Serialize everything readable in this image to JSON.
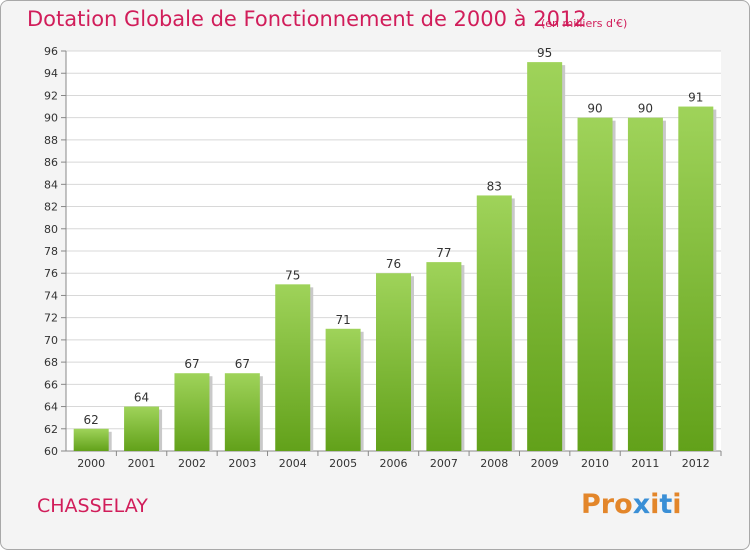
{
  "header": {
    "title": "Dotation Globale de Fonctionnement de 2000 à 2012",
    "subtitle": "(en milliers d'€)"
  },
  "footer": {
    "commune": "CHASSELAY",
    "logo": "Proxiti"
  },
  "colors": {
    "title": "#d11d5a",
    "bar_top": "#9fd35a",
    "bar_bottom": "#62a11a",
    "grid": "#d8d8d8",
    "logo_letters": [
      "#e3862a",
      "#e3862a",
      "#e3862a",
      "#3a8fd6",
      "#e3862a",
      "#3a8fd6",
      "#e3862a"
    ]
  },
  "chart_data": {
    "type": "bar",
    "title": "Dotation Globale de Fonctionnement de 2000 à 2012",
    "subtitle": "(en milliers d'€)",
    "categories": [
      "2000",
      "2001",
      "2002",
      "2003",
      "2004",
      "2005",
      "2006",
      "2007",
      "2008",
      "2009",
      "2010",
      "2011",
      "2012"
    ],
    "values": [
      62,
      64,
      67,
      67,
      75,
      71,
      76,
      77,
      83,
      95,
      90,
      90,
      91
    ],
    "ylim": [
      60,
      96
    ],
    "yticks": [
      60,
      62,
      64,
      66,
      68,
      70,
      72,
      74,
      76,
      78,
      80,
      82,
      84,
      86,
      88,
      90,
      92,
      94,
      96
    ],
    "xlabel": "",
    "ylabel": "",
    "grid": true,
    "data_labels": true
  }
}
